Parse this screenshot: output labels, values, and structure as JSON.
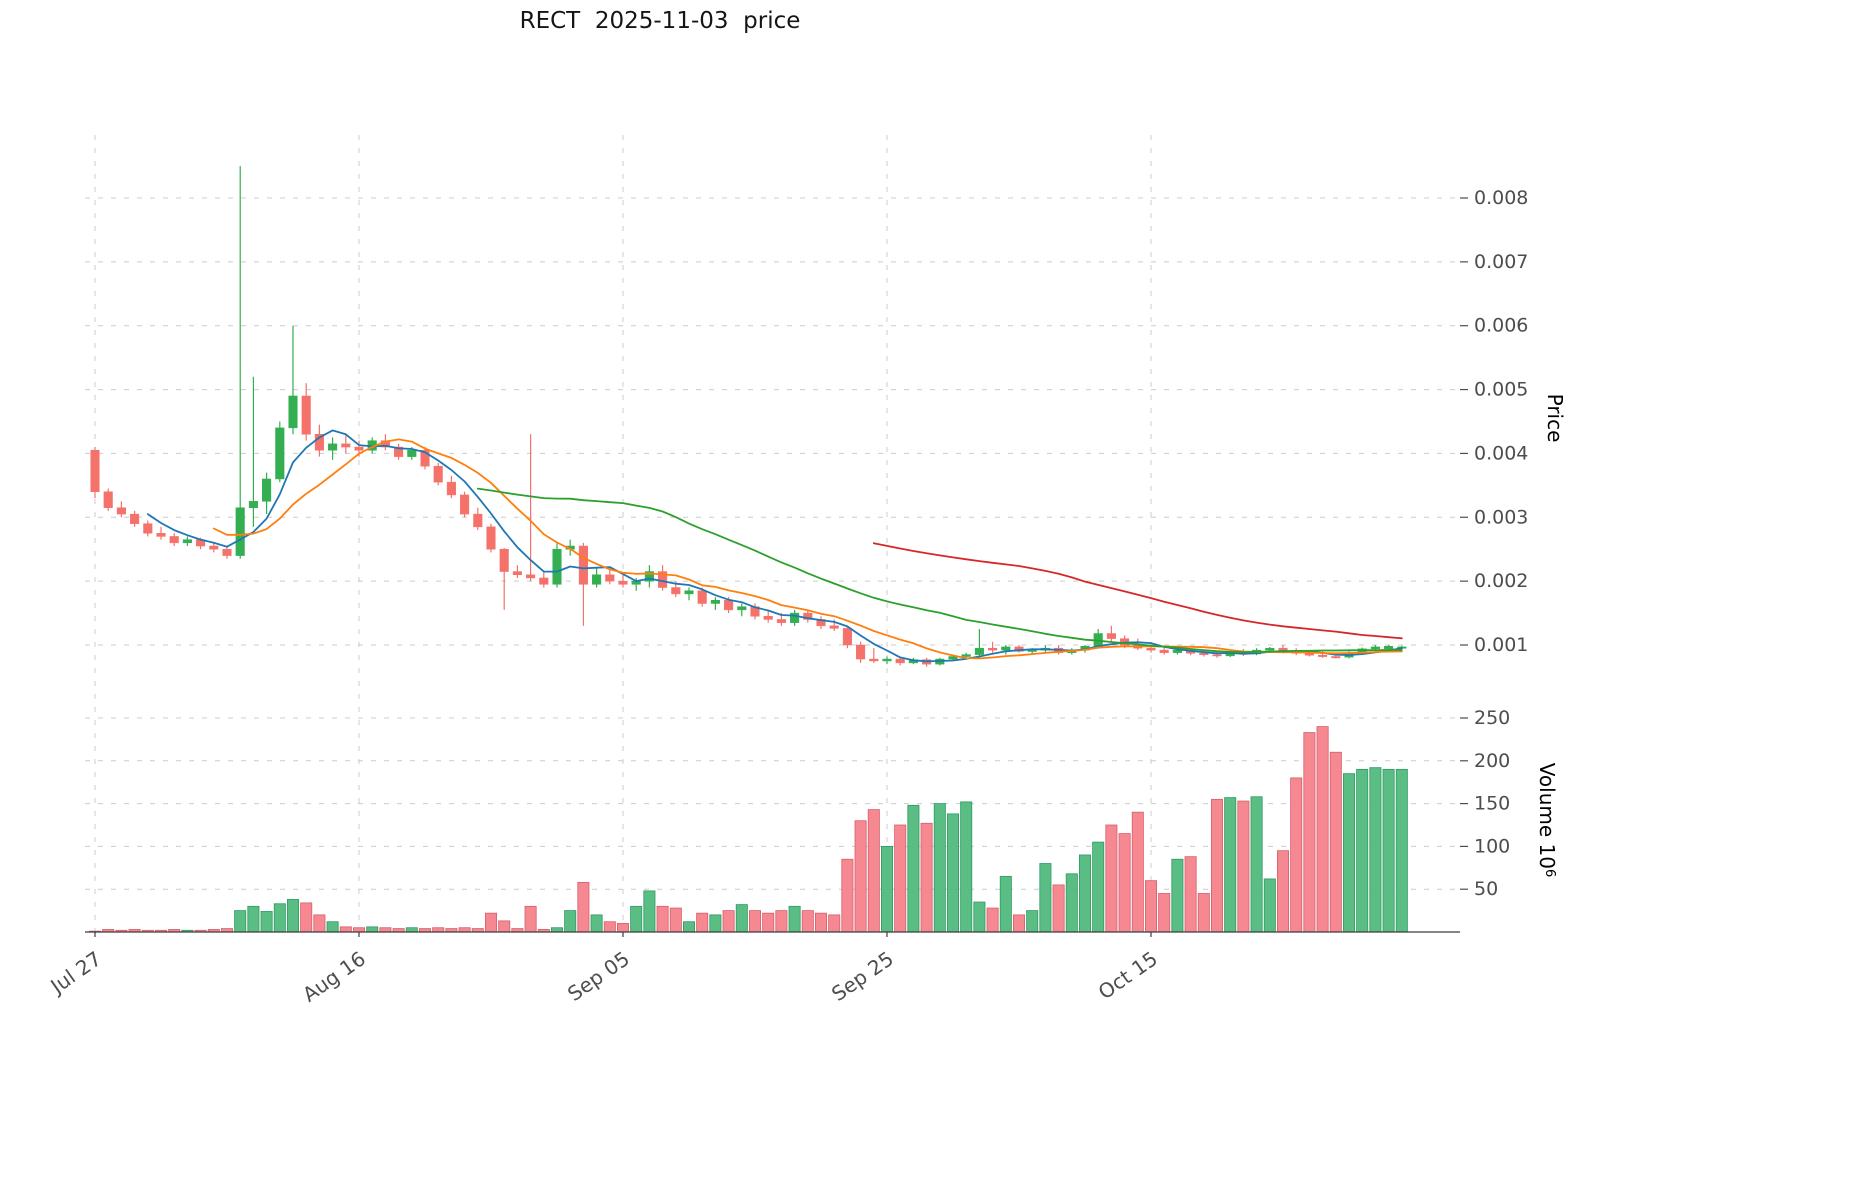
{
  "title": "RECT  2025-11-03  price",
  "chart_data": {
    "type": "candlestick",
    "symbol": "RECT",
    "snapshot_date": "2025-11-03",
    "start_date": "2025-07-27",
    "x_tick_labels": [
      {
        "index": 0,
        "label": "Jul 27"
      },
      {
        "index": 20,
        "label": "Aug 16"
      },
      {
        "index": 40,
        "label": "Sep 05"
      },
      {
        "index": 60,
        "label": "Sep 25"
      },
      {
        "index": 80,
        "label": "Oct 15"
      }
    ],
    "price_axis": {
      "label": "Price",
      "ticks": [
        0.001,
        0.002,
        0.003,
        0.004,
        0.005,
        0.006,
        0.007,
        0.008
      ],
      "range": [
        0.0001,
        0.0089
      ]
    },
    "volume_axis": {
      "label": "Volume",
      "unit_base": "10",
      "unit_exp": "6",
      "ticks": [
        50,
        100,
        150,
        200,
        250
      ],
      "range": [
        0,
        264
      ]
    },
    "moving_averages": [
      {
        "window": 5,
        "color": "#1f77b4"
      },
      {
        "window": 10,
        "color": "#ff7f0e"
      },
      {
        "window": 30,
        "color": "#2ca02c"
      },
      {
        "window": 60,
        "color": "#d62728"
      }
    ],
    "style": {
      "up": "#33af51",
      "down": "#f4726a",
      "volume_up": "#50b97d",
      "volume_up_edge": "#2f9a63",
      "volume_down": "#f5828b",
      "volume_down_edge": "#d55f6b",
      "grid": "#cccccc",
      "spine": "#3c3c3c",
      "tick_label": "#4d4d4d"
    },
    "candles": [
      [
        0.00405,
        0.0041,
        0.0033,
        0.0034
      ],
      [
        0.0034,
        0.00345,
        0.0031,
        0.00315
      ],
      [
        0.00315,
        0.00325,
        0.003,
        0.00305
      ],
      [
        0.00305,
        0.0031,
        0.00285,
        0.0029
      ],
      [
        0.0029,
        0.00295,
        0.0027,
        0.00275
      ],
      [
        0.00275,
        0.00285,
        0.00265,
        0.0027
      ],
      [
        0.0027,
        0.00275,
        0.00255,
        0.0026
      ],
      [
        0.0026,
        0.0027,
        0.00255,
        0.00265
      ],
      [
        0.00265,
        0.00268,
        0.0025,
        0.00255
      ],
      [
        0.00255,
        0.0026,
        0.00245,
        0.0025
      ],
      [
        0.0025,
        0.00255,
        0.00235,
        0.0024
      ],
      [
        0.0024,
        0.0085,
        0.00235,
        0.00315
      ],
      [
        0.00315,
        0.0052,
        0.00285,
        0.00325
      ],
      [
        0.00325,
        0.0037,
        0.00305,
        0.0036
      ],
      [
        0.0036,
        0.0045,
        0.00355,
        0.0044
      ],
      [
        0.0044,
        0.006,
        0.0043,
        0.0049
      ],
      [
        0.0049,
        0.0051,
        0.0042,
        0.0043
      ],
      [
        0.0043,
        0.00445,
        0.00395,
        0.00405
      ],
      [
        0.00405,
        0.00425,
        0.0039,
        0.00415
      ],
      [
        0.00415,
        0.0043,
        0.004,
        0.0041
      ],
      [
        0.0041,
        0.0042,
        0.00395,
        0.00405
      ],
      [
        0.00405,
        0.00425,
        0.004,
        0.0042
      ],
      [
        0.0042,
        0.0043,
        0.00405,
        0.0041
      ],
      [
        0.0041,
        0.00415,
        0.0039,
        0.00395
      ],
      [
        0.00395,
        0.0041,
        0.0039,
        0.00405
      ],
      [
        0.00405,
        0.0041,
        0.00375,
        0.0038
      ],
      [
        0.0038,
        0.00385,
        0.0035,
        0.00355
      ],
      [
        0.00355,
        0.00365,
        0.0033,
        0.00335
      ],
      [
        0.00335,
        0.0034,
        0.003,
        0.00305
      ],
      [
        0.00305,
        0.00315,
        0.0028,
        0.00285
      ],
      [
        0.00285,
        0.0029,
        0.00245,
        0.0025
      ],
      [
        0.0025,
        0.00252,
        0.00155,
        0.00215
      ],
      [
        0.00215,
        0.00225,
        0.00205,
        0.0021
      ],
      [
        0.0021,
        0.0043,
        0.002,
        0.00205
      ],
      [
        0.00205,
        0.00215,
        0.0019,
        0.00195
      ],
      [
        0.00195,
        0.0026,
        0.0019,
        0.0025
      ],
      [
        0.0025,
        0.00265,
        0.0024,
        0.00255
      ],
      [
        0.00255,
        0.0026,
        0.0013,
        0.00195
      ],
      [
        0.00195,
        0.0022,
        0.0019,
        0.0021
      ],
      [
        0.0021,
        0.0022,
        0.00195,
        0.002
      ],
      [
        0.002,
        0.0021,
        0.0019,
        0.00195
      ],
      [
        0.00195,
        0.00205,
        0.00185,
        0.002
      ],
      [
        0.002,
        0.00225,
        0.0019,
        0.00215
      ],
      [
        0.00215,
        0.00225,
        0.00185,
        0.0019
      ],
      [
        0.0019,
        0.002,
        0.00175,
        0.0018
      ],
      [
        0.0018,
        0.0019,
        0.0017,
        0.00185
      ],
      [
        0.00185,
        0.0019,
        0.0016,
        0.00165
      ],
      [
        0.00165,
        0.00175,
        0.00155,
        0.0017
      ],
      [
        0.0017,
        0.00175,
        0.0015,
        0.00155
      ],
      [
        0.00155,
        0.00165,
        0.00145,
        0.0016
      ],
      [
        0.0016,
        0.00165,
        0.0014,
        0.00145
      ],
      [
        0.00145,
        0.00155,
        0.00135,
        0.0014
      ],
      [
        0.0014,
        0.0015,
        0.0013,
        0.00135
      ],
      [
        0.00135,
        0.00155,
        0.0013,
        0.0015
      ],
      [
        0.0015,
        0.00155,
        0.00135,
        0.0014
      ],
      [
        0.0014,
        0.00145,
        0.00125,
        0.0013
      ],
      [
        0.0013,
        0.0014,
        0.00122,
        0.00126
      ],
      [
        0.00126,
        0.0013,
        0.00095,
        0.001
      ],
      [
        0.001,
        0.00105,
        0.00072,
        0.00078
      ],
      [
        0.00078,
        0.00095,
        0.00072,
        0.00075
      ],
      [
        0.00075,
        0.00082,
        0.0007,
        0.00078
      ],
      [
        0.00078,
        0.0008,
        0.00068,
        0.00072
      ],
      [
        0.00072,
        0.0008,
        0.0007,
        0.00077
      ],
      [
        0.00077,
        0.0008,
        0.00066,
        0.0007
      ],
      [
        0.0007,
        0.0008,
        0.00068,
        0.00078
      ],
      [
        0.00078,
        0.00085,
        0.00075,
        0.00082
      ],
      [
        0.00082,
        0.00088,
        0.00078,
        0.00085
      ],
      [
        0.00085,
        0.00125,
        0.0008,
        0.00095
      ],
      [
        0.00095,
        0.00105,
        0.00088,
        0.00092
      ],
      [
        0.00092,
        0.001,
        0.00085,
        0.00097
      ],
      [
        0.00097,
        0.001,
        0.00088,
        0.0009
      ],
      [
        0.0009,
        0.00095,
        0.00085,
        0.00092
      ],
      [
        0.00092,
        0.001,
        0.00088,
        0.00095
      ],
      [
        0.00095,
        0.001,
        0.00085,
        0.00088
      ],
      [
        0.00088,
        0.00095,
        0.00085,
        0.00092
      ],
      [
        0.00092,
        0.001,
        0.00088,
        0.00098
      ],
      [
        0.00098,
        0.00125,
        0.00095,
        0.00118
      ],
      [
        0.00118,
        0.0013,
        0.00105,
        0.0011
      ],
      [
        0.0011,
        0.00115,
        0.00095,
        0.001
      ],
      [
        0.001,
        0.0011,
        0.00092,
        0.00095
      ],
      [
        0.00095,
        0.001,
        0.00088,
        0.00092
      ],
      [
        0.00092,
        0.00098,
        0.00085,
        0.00088
      ],
      [
        0.00088,
        0.00095,
        0.00085,
        0.00092
      ],
      [
        0.00092,
        0.00095,
        0.00084,
        0.00087
      ],
      [
        0.00087,
        0.00092,
        0.00082,
        0.00085
      ],
      [
        0.00085,
        0.0009,
        0.0008,
        0.00083
      ],
      [
        0.00083,
        0.00093,
        0.00081,
        0.0009
      ],
      [
        0.0009,
        0.00094,
        0.00083,
        0.00086
      ],
      [
        0.00086,
        0.00095,
        0.00084,
        0.00092
      ],
      [
        0.00092,
        0.00097,
        0.00088,
        0.00095
      ],
      [
        0.00095,
        0.001,
        0.00087,
        0.0009
      ],
      [
        0.0009,
        0.00095,
        0.00084,
        0.00087
      ],
      [
        0.00087,
        0.00092,
        0.00082,
        0.00084
      ],
      [
        0.00084,
        0.0009,
        0.0008,
        0.00082
      ],
      [
        0.00082,
        0.00088,
        0.00079,
        0.00081
      ],
      [
        0.00081,
        0.0009,
        0.00079,
        0.00088
      ],
      [
        0.00088,
        0.00096,
        0.00086,
        0.00094
      ],
      [
        0.00094,
        0.001,
        0.00091,
        0.00097
      ],
      [
        0.00094,
        0.001,
        0.00092,
        0.00098
      ],
      [
        0.00095,
        0.00099,
        0.00092,
        0.00097
      ]
    ],
    "volume_millions": [
      1,
      3,
      2,
      3,
      2,
      2,
      3,
      2,
      2,
      3,
      4,
      25,
      30,
      24,
      33,
      38,
      34,
      20,
      12,
      6,
      5,
      6,
      5,
      4,
      5,
      4,
      5,
      4,
      5,
      4,
      22,
      13,
      4,
      30,
      3,
      5,
      25,
      58,
      20,
      12,
      10,
      30,
      48,
      30,
      28,
      12,
      22,
      20,
      25,
      32,
      25,
      22,
      25,
      30,
      25,
      22,
      20,
      85,
      130,
      143,
      100,
      125,
      148,
      127,
      150,
      138,
      152,
      35,
      28,
      65,
      20,
      25,
      80,
      55,
      68,
      90,
      105,
      125,
      115,
      140,
      60,
      45,
      85,
      88,
      45,
      155,
      157,
      153,
      158,
      62,
      95,
      180,
      233,
      240,
      210,
      185,
      190,
      192,
      190,
      190
    ]
  }
}
